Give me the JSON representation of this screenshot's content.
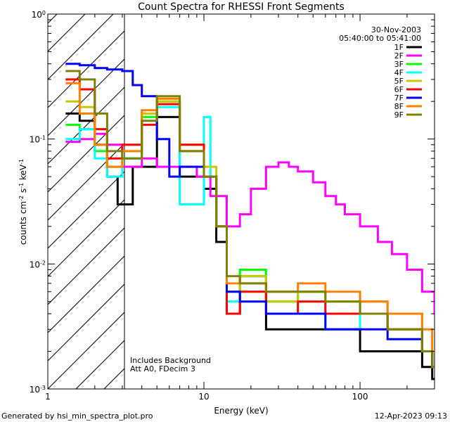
{
  "chart_data": {
    "type": "line",
    "title": "Count Spectra for RHESSI Front Segments",
    "xlabel": "Energy (keV)",
    "ylabel": "counts cm-2 s-1 keV-1",
    "xscale": "log",
    "yscale": "log",
    "xlim": [
      1,
      300
    ],
    "ylim": [
      0.001,
      1
    ],
    "x_tick_labels": [
      {
        "value": 1,
        "label": "1"
      },
      {
        "value": 10,
        "label": "10"
      },
      {
        "value": 100,
        "label": "100"
      }
    ],
    "y_tick_labels": [
      {
        "value": 1,
        "base": "10",
        "exp": "0"
      },
      {
        "value": 0.1,
        "base": "10",
        "exp": "-1"
      },
      {
        "value": 0.01,
        "base": "10",
        "exp": "-2"
      },
      {
        "value": 0.001,
        "base": "10",
        "exp": "-3"
      }
    ],
    "date": "30-Nov-2003",
    "time_range": "05:40:00 to 05:41:00",
    "shaded_region_below_keV": 3,
    "annotations": [
      "Includes Background",
      "Att A0, FDecim 3"
    ],
    "series": [
      {
        "name": "1F",
        "color": "#000000",
        "points": [
          [
            1.3,
            0.16
          ],
          [
            1.6,
            0.14
          ],
          [
            2.0,
            0.09
          ],
          [
            2.4,
            0.05
          ],
          [
            2.8,
            0.03
          ],
          [
            3.5,
            0.06
          ],
          [
            5,
            0.15
          ],
          [
            7,
            0.05
          ],
          [
            10,
            0.04
          ],
          [
            12,
            0.015
          ],
          [
            14,
            0.004
          ],
          [
            17,
            0.008
          ],
          [
            25,
            0.003
          ],
          [
            40,
            0.003
          ],
          [
            60,
            0.003
          ],
          [
            100,
            0.002
          ],
          [
            150,
            0.002
          ],
          [
            250,
            0.0015
          ],
          [
            290,
            0.0012
          ]
        ]
      },
      {
        "name": "2F",
        "color": "#ff00ff",
        "points": [
          [
            1.3,
            0.095
          ],
          [
            1.6,
            0.1
          ],
          [
            2.0,
            0.11
          ],
          [
            2.4,
            0.09
          ],
          [
            3,
            0.06
          ],
          [
            4,
            0.07
          ],
          [
            5,
            0.06
          ],
          [
            7,
            0.06
          ],
          [
            9,
            0.05
          ],
          [
            11,
            0.035
          ],
          [
            14,
            0.02
          ],
          [
            17,
            0.025
          ],
          [
            20,
            0.04
          ],
          [
            25,
            0.06
          ],
          [
            30,
            0.065
          ],
          [
            35,
            0.06
          ],
          [
            40,
            0.055
          ],
          [
            50,
            0.045
          ],
          [
            60,
            0.035
          ],
          [
            70,
            0.03
          ],
          [
            80,
            0.025
          ],
          [
            100,
            0.02
          ],
          [
            130,
            0.015
          ],
          [
            160,
            0.012
          ],
          [
            200,
            0.009
          ],
          [
            250,
            0.006
          ],
          [
            300,
            0.004
          ]
        ]
      },
      {
        "name": "3F",
        "color": "#00ff00",
        "points": [
          [
            1.3,
            0.13
          ],
          [
            1.6,
            0.12
          ],
          [
            2.0,
            0.08
          ],
          [
            2.4,
            0.06
          ],
          [
            3,
            0.07
          ],
          [
            4,
            0.15
          ],
          [
            5,
            0.2
          ],
          [
            7,
            0.09
          ],
          [
            10,
            0.05
          ],
          [
            12,
            0.02
          ],
          [
            14,
            0.006
          ],
          [
            17,
            0.009
          ],
          [
            25,
            0.005
          ],
          [
            40,
            0.006
          ],
          [
            60,
            0.005
          ],
          [
            100,
            0.004
          ],
          [
            150,
            0.003
          ],
          [
            250,
            0.002
          ],
          [
            290,
            0.0015
          ]
        ]
      },
      {
        "name": "4F",
        "color": "#00ffff",
        "points": [
          [
            1.3,
            0.1
          ],
          [
            1.6,
            0.12
          ],
          [
            2.0,
            0.07
          ],
          [
            2.4,
            0.05
          ],
          [
            3,
            0.07
          ],
          [
            4,
            0.14
          ],
          [
            5,
            0.18
          ],
          [
            7,
            0.03
          ],
          [
            10,
            0.15
          ],
          [
            11,
            0.05
          ],
          [
            12,
            0.02
          ],
          [
            14,
            0.005
          ],
          [
            17,
            0.008
          ],
          [
            25,
            0.004
          ],
          [
            40,
            0.005
          ],
          [
            60,
            0.003
          ],
          [
            100,
            0.004
          ],
          [
            150,
            0.003
          ],
          [
            250,
            0.002
          ],
          [
            290,
            0.0015
          ]
        ]
      },
      {
        "name": "5F",
        "color": "#c8c800",
        "points": [
          [
            1.3,
            0.2
          ],
          [
            1.6,
            0.18
          ],
          [
            2.0,
            0.09
          ],
          [
            2.4,
            0.06
          ],
          [
            3,
            0.08
          ],
          [
            4,
            0.16
          ],
          [
            5,
            0.2
          ],
          [
            7,
            0.08
          ],
          [
            10,
            0.06
          ],
          [
            12,
            0.02
          ],
          [
            14,
            0.006
          ],
          [
            17,
            0.008
          ],
          [
            25,
            0.005
          ],
          [
            40,
            0.006
          ],
          [
            60,
            0.005
          ],
          [
            100,
            0.005
          ],
          [
            150,
            0.004
          ],
          [
            250,
            0.002
          ],
          [
            290,
            0.002
          ]
        ]
      },
      {
        "name": "6F",
        "color": "#ff0000",
        "points": [
          [
            1.3,
            0.3
          ],
          [
            1.6,
            0.25
          ],
          [
            2.0,
            0.12
          ],
          [
            2.4,
            0.07
          ],
          [
            3,
            0.09
          ],
          [
            4,
            0.13
          ],
          [
            5,
            0.19
          ],
          [
            7,
            0.09
          ],
          [
            10,
            0.05
          ],
          [
            12,
            0.02
          ],
          [
            14,
            0.004
          ],
          [
            17,
            0.006
          ],
          [
            25,
            0.004
          ],
          [
            40,
            0.005
          ],
          [
            60,
            0.004
          ],
          [
            100,
            0.004
          ],
          [
            150,
            0.003
          ],
          [
            250,
            0.002
          ],
          [
            290,
            0.0015
          ]
        ]
      },
      {
        "name": "7F",
        "color": "#0000ff",
        "points": [
          [
            1.3,
            0.4
          ],
          [
            1.6,
            0.39
          ],
          [
            2.0,
            0.37
          ],
          [
            2.4,
            0.36
          ],
          [
            3,
            0.35
          ],
          [
            3.5,
            0.27
          ],
          [
            4,
            0.22
          ],
          [
            5,
            0.1
          ],
          [
            6,
            0.05
          ],
          [
            7,
            0.06
          ],
          [
            10,
            0.05
          ],
          [
            12,
            0.02
          ],
          [
            14,
            0.006
          ],
          [
            17,
            0.005
          ],
          [
            25,
            0.004
          ],
          [
            40,
            0.004
          ],
          [
            60,
            0.003
          ],
          [
            100,
            0.003
          ],
          [
            150,
            0.0025
          ],
          [
            250,
            0.002
          ],
          [
            290,
            0.0015
          ]
        ]
      },
      {
        "name": "8F",
        "color": "#ff8000",
        "points": [
          [
            1.3,
            0.28
          ],
          [
            1.6,
            0.16
          ],
          [
            2.0,
            0.09
          ],
          [
            2.4,
            0.06
          ],
          [
            3,
            0.08
          ],
          [
            4,
            0.17
          ],
          [
            5,
            0.21
          ],
          [
            7,
            0.08
          ],
          [
            10,
            0.05
          ],
          [
            12,
            0.02
          ],
          [
            14,
            0.007
          ],
          [
            17,
            0.007
          ],
          [
            25,
            0.006
          ],
          [
            40,
            0.007
          ],
          [
            60,
            0.006
          ],
          [
            100,
            0.005
          ],
          [
            150,
            0.004
          ],
          [
            250,
            0.003
          ],
          [
            290,
            0.002
          ]
        ]
      },
      {
        "name": "9F",
        "color": "#808000",
        "points": [
          [
            1.3,
            0.35
          ],
          [
            1.6,
            0.3
          ],
          [
            2.0,
            0.16
          ],
          [
            2.4,
            0.08
          ],
          [
            3,
            0.07
          ],
          [
            4,
            0.14
          ],
          [
            5,
            0.22
          ],
          [
            7,
            0.08
          ],
          [
            10,
            0.05
          ],
          [
            12,
            0.02
          ],
          [
            14,
            0.008
          ],
          [
            17,
            0.007
          ],
          [
            25,
            0.006
          ],
          [
            40,
            0.006
          ],
          [
            60,
            0.005
          ],
          [
            100,
            0.004
          ],
          [
            150,
            0.003
          ],
          [
            250,
            0.002
          ],
          [
            290,
            0.0015
          ]
        ]
      }
    ]
  },
  "footer": {
    "left": "Generated by hsi_min_spectra_plot.pro",
    "right": "12-Apr-2023 09:13"
  }
}
